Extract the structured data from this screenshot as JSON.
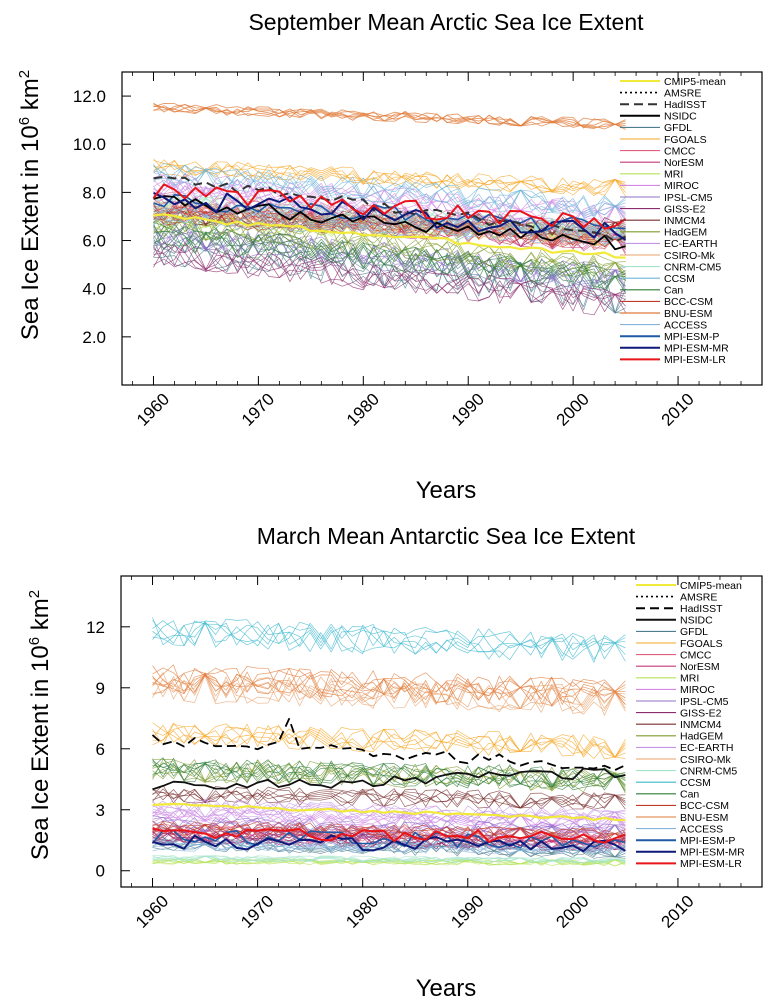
{
  "chart_data": [
    {
      "type": "line",
      "title": "September Mean Arctic Sea Ice Extent",
      "xlabel": "Years",
      "ylabel": "Sea Ice Extent in 10^6 km^2",
      "ylabel_base": "Sea Ice Extent in 10",
      "ylabel_exp": "6",
      "ylabel_unit": " km",
      "ylabel_unit_exp": "2",
      "xlim": [
        1957,
        2018
      ],
      "ylim": [
        0,
        13
      ],
      "x_ticks": [
        1960,
        1970,
        1980,
        1990,
        2000,
        2010
      ],
      "x_tick_labels": [
        "1960",
        "1970",
        "1980",
        "1990",
        "2000",
        "2010"
      ],
      "y_ticks": [
        2.0,
        4.0,
        6.0,
        8.0,
        10.0,
        12.0
      ],
      "y_tick_labels": [
        "2.0",
        "4.0",
        "6.0",
        "8.0",
        "10.0",
        "12.0"
      ],
      "grid": false,
      "legend_position": "right",
      "x_start": 1960,
      "x_end": 2005,
      "series": [
        {
          "name": "CMIP5-mean",
          "color": "#f2ea3a",
          "style": "solid",
          "width": 2.2,
          "start": 7.1,
          "end": 5.4,
          "spread": 0.15
        },
        {
          "name": "AMSRE",
          "color": "#000000",
          "style": "dotted",
          "width": 1.2,
          "start": null,
          "end": null,
          "spread": 0
        },
        {
          "name": "HadISST",
          "color": "#333333",
          "style": "dashed",
          "width": 2.0,
          "start": 8.8,
          "end": 6.2,
          "spread": 0.3
        },
        {
          "name": "NSIDC",
          "color": "#000000",
          "style": "solid",
          "width": 1.8,
          "start": 7.8,
          "end": 6.0,
          "spread": 0.4
        },
        {
          "name": "GFDL",
          "color": "#4e7e8e",
          "style": "solid",
          "width": 0.7,
          "start": 6.3,
          "end": 4.2,
          "spread": 1.2
        },
        {
          "name": "FGOALS",
          "color": "#f5a623",
          "style": "solid",
          "width": 0.7,
          "start": 9.2,
          "end": 8.3,
          "spread": 0.5
        },
        {
          "name": "CMCC",
          "color": "#e0607e",
          "style": "solid",
          "width": 0.7,
          "start": 7.8,
          "end": 6.5,
          "spread": 0.6
        },
        {
          "name": "NorESM",
          "color": "#c43c7e",
          "style": "solid",
          "width": 0.7,
          "start": 7.5,
          "end": 6.0,
          "spread": 0.6
        },
        {
          "name": "MRI",
          "color": "#b5e35a",
          "style": "solid",
          "width": 0.7,
          "start": 7.0,
          "end": 6.3,
          "spread": 0.6
        },
        {
          "name": "MIROC",
          "color": "#d287e6",
          "style": "solid",
          "width": 0.7,
          "start": 8.5,
          "end": 7.2,
          "spread": 0.7
        },
        {
          "name": "IPSL-CM5",
          "color": "#8e6fc7",
          "style": "solid",
          "width": 0.7,
          "start": 6.4,
          "end": 4.5,
          "spread": 0.8
        },
        {
          "name": "GISS-E2",
          "color": "#8c2c6e",
          "style": "solid",
          "width": 0.7,
          "start": 5.6,
          "end": 3.5,
          "spread": 0.8
        },
        {
          "name": "INMCM4",
          "color": "#7a2f2f",
          "style": "solid",
          "width": 0.7,
          "start": 7.2,
          "end": 6.6,
          "spread": 0.6
        },
        {
          "name": "HadGEM",
          "color": "#7f9c2e",
          "style": "solid",
          "width": 0.7,
          "start": 6.8,
          "end": 4.9,
          "spread": 0.7
        },
        {
          "name": "EC-EARTH",
          "color": "#c594e6",
          "style": "solid",
          "width": 0.7,
          "start": 8.0,
          "end": 6.2,
          "spread": 0.7
        },
        {
          "name": "CSIRO-Mk",
          "color": "#e8a06a",
          "style": "solid",
          "width": 0.7,
          "start": 7.3,
          "end": 6.0,
          "spread": 0.6
        },
        {
          "name": "CNRM-CM5",
          "color": "#a4e4c8",
          "style": "solid",
          "width": 0.7,
          "start": 7.6,
          "end": 6.4,
          "spread": 0.6
        },
        {
          "name": "CCSM",
          "color": "#6fb6d9",
          "style": "solid",
          "width": 0.7,
          "start": 8.8,
          "end": 7.3,
          "spread": 0.7
        },
        {
          "name": "Can",
          "color": "#2e7d3a",
          "style": "solid",
          "width": 0.7,
          "start": 6.2,
          "end": 4.4,
          "spread": 0.8
        },
        {
          "name": "BCC-CSM",
          "color": "#c0392b",
          "style": "solid",
          "width": 0.7,
          "start": 7.1,
          "end": 6.0,
          "spread": 0.6
        },
        {
          "name": "BNU-ESM",
          "color": "#e07b39",
          "style": "solid",
          "width": 0.9,
          "start": 11.5,
          "end": 10.8,
          "spread": 0.3
        },
        {
          "name": "ACCESS",
          "color": "#86b4dc",
          "style": "solid",
          "width": 0.7,
          "start": 7.0,
          "end": 6.1,
          "spread": 0.6
        },
        {
          "name": "MPI-ESM-P",
          "color": "#1f5aa6",
          "style": "solid",
          "width": 1.6,
          "start": 7.6,
          "end": 6.5,
          "spread": 0.5
        },
        {
          "name": "MPI-ESM-MR",
          "color": "#0d1a7a",
          "style": "solid",
          "width": 2.0,
          "start": 7.7,
          "end": 6.3,
          "spread": 0.6
        },
        {
          "name": "MPI-ESM-LR",
          "color": "#e8141a",
          "style": "solid",
          "width": 2.0,
          "start": 8.0,
          "end": 6.6,
          "spread": 0.5
        }
      ]
    },
    {
      "type": "line",
      "title": "March Mean Antarctic Sea Ice Extent",
      "xlabel": "Years",
      "ylabel": "Sea Ice Extent in 10^6 km^2",
      "ylabel_base": "Sea Ice Extent in 10",
      "ylabel_exp": "6",
      "ylabel_unit": " km",
      "ylabel_unit_exp": "2",
      "xlim": [
        1957,
        2018
      ],
      "ylim": [
        -0.8,
        14.5
      ],
      "x_ticks": [
        1960,
        1970,
        1980,
        1990,
        2000,
        2010
      ],
      "x_tick_labels": [
        "1960",
        "1970",
        "1980",
        "1990",
        "2000",
        "2010"
      ],
      "y_ticks": [
        0,
        3,
        6,
        9,
        12
      ],
      "y_tick_labels": [
        "0",
        "3",
        "6",
        "9",
        "12"
      ],
      "grid": false,
      "legend_position": "right",
      "x_start": 1960,
      "x_end": 2005,
      "series": [
        {
          "name": "CMIP5-mean",
          "color": "#f2ea3a",
          "style": "solid",
          "width": 2.2,
          "start": 3.25,
          "end": 2.5,
          "spread": 0.1
        },
        {
          "name": "AMSRE",
          "color": "#000000",
          "style": "dotted",
          "width": 1.2,
          "start": null,
          "end": null,
          "spread": 0
        },
        {
          "name": "HadISST",
          "color": "#000000",
          "style": "dashed",
          "width": 1.8,
          "start": 6.3,
          "end": 5.0,
          "spread": 0.4
        },
        {
          "name": "NSIDC",
          "color": "#111111",
          "style": "solid",
          "width": 1.8,
          "start": 4.0,
          "end": 4.7,
          "spread": 0.4
        },
        {
          "name": "GFDL",
          "color": "#4e7e8e",
          "style": "solid",
          "width": 0.7,
          "start": 1.2,
          "end": 0.8,
          "spread": 0.5
        },
        {
          "name": "FGOALS",
          "color": "#f5a623",
          "style": "solid",
          "width": 0.7,
          "start": 6.5,
          "end": 5.8,
          "spread": 0.8
        },
        {
          "name": "CMCC",
          "color": "#e0607e",
          "style": "solid",
          "width": 0.7,
          "start": 1.8,
          "end": 1.5,
          "spread": 0.5
        },
        {
          "name": "NorESM",
          "color": "#c43c7e",
          "style": "solid",
          "width": 0.7,
          "start": 1.5,
          "end": 1.2,
          "spread": 0.5
        },
        {
          "name": "MRI",
          "color": "#b5e35a",
          "style": "solid",
          "width": 0.7,
          "start": 0.4,
          "end": 0.3,
          "spread": 0.2
        },
        {
          "name": "MIROC",
          "color": "#d287e6",
          "style": "solid",
          "width": 0.7,
          "start": 2.5,
          "end": 2.0,
          "spread": 0.6
        },
        {
          "name": "IPSL-CM5",
          "color": "#8e6fc7",
          "style": "solid",
          "width": 0.7,
          "start": 2.0,
          "end": 1.6,
          "spread": 0.6
        },
        {
          "name": "GISS-E2",
          "color": "#8c2c6e",
          "style": "solid",
          "width": 0.7,
          "start": 1.5,
          "end": 1.0,
          "spread": 0.5
        },
        {
          "name": "INMCM4",
          "color": "#7a2f2f",
          "style": "solid",
          "width": 0.7,
          "start": 3.5,
          "end": 3.1,
          "spread": 0.6
        },
        {
          "name": "HadGEM",
          "color": "#7f9c2e",
          "style": "solid",
          "width": 0.7,
          "start": 4.6,
          "end": 4.0,
          "spread": 0.8
        },
        {
          "name": "EC-EARTH",
          "color": "#c594e6",
          "style": "solid",
          "width": 0.7,
          "start": 2.8,
          "end": 2.3,
          "spread": 0.6
        },
        {
          "name": "CSIRO-Mk",
          "color": "#e8a06a",
          "style": "solid",
          "width": 0.7,
          "start": 8.5,
          "end": 7.8,
          "spread": 1.0
        },
        {
          "name": "CNRM-CM5",
          "color": "#a4e4c8",
          "style": "solid",
          "width": 0.7,
          "start": 0.5,
          "end": 0.4,
          "spread": 0.2
        },
        {
          "name": "CCSM",
          "color": "#3cb8cf",
          "style": "solid",
          "width": 0.7,
          "start": 11.2,
          "end": 10.3,
          "spread": 1.0
        },
        {
          "name": "Can",
          "color": "#2e7d3a",
          "style": "solid",
          "width": 0.7,
          "start": 4.5,
          "end": 4.0,
          "spread": 0.8
        },
        {
          "name": "BCC-CSM",
          "color": "#c0392b",
          "style": "solid",
          "width": 0.7,
          "start": 1.8,
          "end": 1.4,
          "spread": 0.5
        },
        {
          "name": "BNU-ESM",
          "color": "#e07b39",
          "style": "solid",
          "width": 0.7,
          "start": 8.8,
          "end": 8.0,
          "spread": 1.0
        },
        {
          "name": "ACCESS",
          "color": "#86b4dc",
          "style": "solid",
          "width": 0.7,
          "start": 1.0,
          "end": 0.8,
          "spread": 0.4
        },
        {
          "name": "MPI-ESM-P",
          "color": "#1f5aa6",
          "style": "solid",
          "width": 1.6,
          "start": 1.3,
          "end": 1.1,
          "spread": 0.5
        },
        {
          "name": "MPI-ESM-MR",
          "color": "#0d1a7a",
          "style": "solid",
          "width": 2.0,
          "start": 1.1,
          "end": 0.9,
          "spread": 0.5
        },
        {
          "name": "MPI-ESM-LR",
          "color": "#e8141a",
          "style": "solid",
          "width": 2.0,
          "start": 1.6,
          "end": 1.3,
          "spread": 0.4
        }
      ]
    }
  ]
}
